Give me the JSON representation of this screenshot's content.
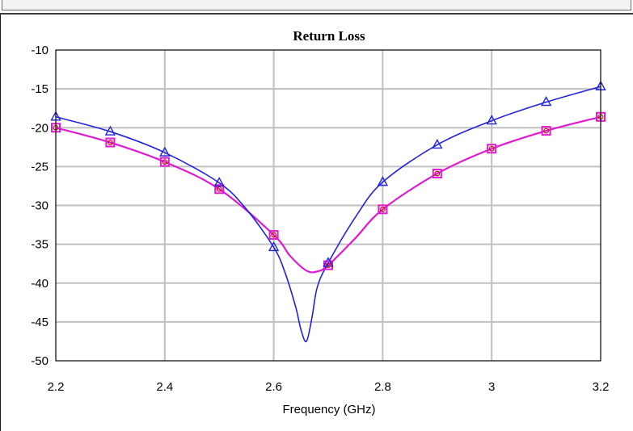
{
  "chart_data": {
    "type": "line",
    "title": "Return Loss",
    "xlabel": "Frequency (GHz)",
    "ylabel": "",
    "xlim": [
      2.2,
      3.2
    ],
    "ylim": [
      -50,
      -10
    ],
    "xticks": [
      "2.2",
      "2.4",
      "2.6",
      "2.8",
      "3",
      "3.2"
    ],
    "xtick_values": [
      2.2,
      2.4,
      2.6,
      2.8,
      3.0,
      3.2
    ],
    "yticks": [
      "-10",
      "-15",
      "-20",
      "-25",
      "-30",
      "-35",
      "-40",
      "-45",
      "-50"
    ],
    "ytick_values": [
      -10,
      -15,
      -20,
      -25,
      -30,
      -35,
      -40,
      -45,
      -50
    ],
    "x_grid_values": [
      2.2,
      2.4,
      2.6,
      2.8,
      3.0,
      3.2
    ],
    "grid": true,
    "legend": "none",
    "series": [
      {
        "color": "#2222dd",
        "marker": "triangle",
        "x": [
          2.2,
          2.3,
          2.4,
          2.5,
          2.6,
          2.7,
          2.8,
          2.9,
          3.0,
          3.1,
          3.2
        ],
        "values": [
          -18.6,
          -20.5,
          -23.2,
          -27.1,
          -35.4,
          -37.4,
          -27.0,
          -22.2,
          -19.1,
          -16.7,
          -14.7
        ],
        "curve_x": [
          2.2,
          2.3,
          2.4,
          2.5,
          2.55,
          2.6,
          2.62,
          2.64,
          2.65,
          2.66,
          2.67,
          2.68,
          2.7,
          2.75,
          2.8,
          2.9,
          3.0,
          3.1,
          3.2
        ],
        "curve_y": [
          -18.6,
          -20.5,
          -23.2,
          -27.1,
          -30.5,
          -35.4,
          -38.5,
          -43.0,
          -46.0,
          -47.5,
          -44.5,
          -40.5,
          -37.4,
          -31.5,
          -27.0,
          -22.2,
          -19.1,
          -16.7,
          -14.7
        ]
      },
      {
        "color": "#e01ad0",
        "marker": "square",
        "x": [
          2.2,
          2.3,
          2.4,
          2.5,
          2.6,
          2.7,
          2.8,
          2.9,
          3.0,
          3.1,
          3.2
        ],
        "values": [
          -20.0,
          -21.9,
          -24.4,
          -27.9,
          -33.8,
          -37.7,
          -30.5,
          -25.9,
          -22.7,
          -20.4,
          -18.6
        ],
        "curve_x": [
          2.2,
          2.3,
          2.4,
          2.5,
          2.6,
          2.63,
          2.66,
          2.68,
          2.7,
          2.75,
          2.8,
          2.9,
          3.0,
          3.1,
          3.2
        ],
        "curve_y": [
          -20.0,
          -21.9,
          -24.4,
          -27.9,
          -33.8,
          -36.5,
          -38.4,
          -38.5,
          -37.7,
          -34.2,
          -30.5,
          -25.9,
          -22.7,
          -20.4,
          -18.6
        ]
      },
      {
        "color": "#cc1111",
        "marker": "circle",
        "x": [
          2.2,
          2.3,
          2.4,
          2.5,
          2.6,
          2.7,
          2.8,
          2.9,
          3.0,
          3.1,
          3.2
        ],
        "values": [
          -20.0,
          -21.9,
          -24.4,
          -27.9,
          -33.8,
          -37.7,
          -30.5,
          -25.9,
          -22.7,
          -20.4,
          -18.6
        ]
      }
    ]
  }
}
